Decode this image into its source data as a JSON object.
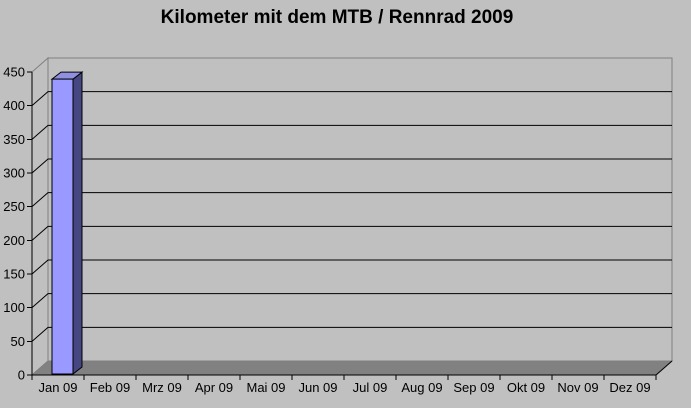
{
  "chart_data": {
    "type": "bar",
    "style": "3d-column",
    "title": "Kilometer mit dem MTB / Rennrad 2009",
    "categories": [
      "Jan 09",
      "Feb 09",
      "Mrz 09",
      "Apr 09",
      "Mai 09",
      "Jun 09",
      "Jul 09",
      "Aug 09",
      "Sep 09",
      "Okt 09",
      "Nov 09",
      "Dez 09"
    ],
    "values": [
      435,
      0,
      0,
      0,
      0,
      0,
      0,
      0,
      0,
      0,
      0,
      0
    ],
    "xlabel": "",
    "ylabel": "",
    "ylim": [
      0,
      450
    ],
    "ytick_step": 50,
    "grid": true,
    "legend": false
  },
  "colors": {
    "background": "#C0C0C0",
    "floor": "#818181",
    "wall_border": "#808080",
    "gridline": "#000000",
    "axis": "#000000",
    "text": "#000000",
    "bar_front": "#9999FF",
    "bar_top": "#9090E0",
    "bar_side": "#464682"
  }
}
